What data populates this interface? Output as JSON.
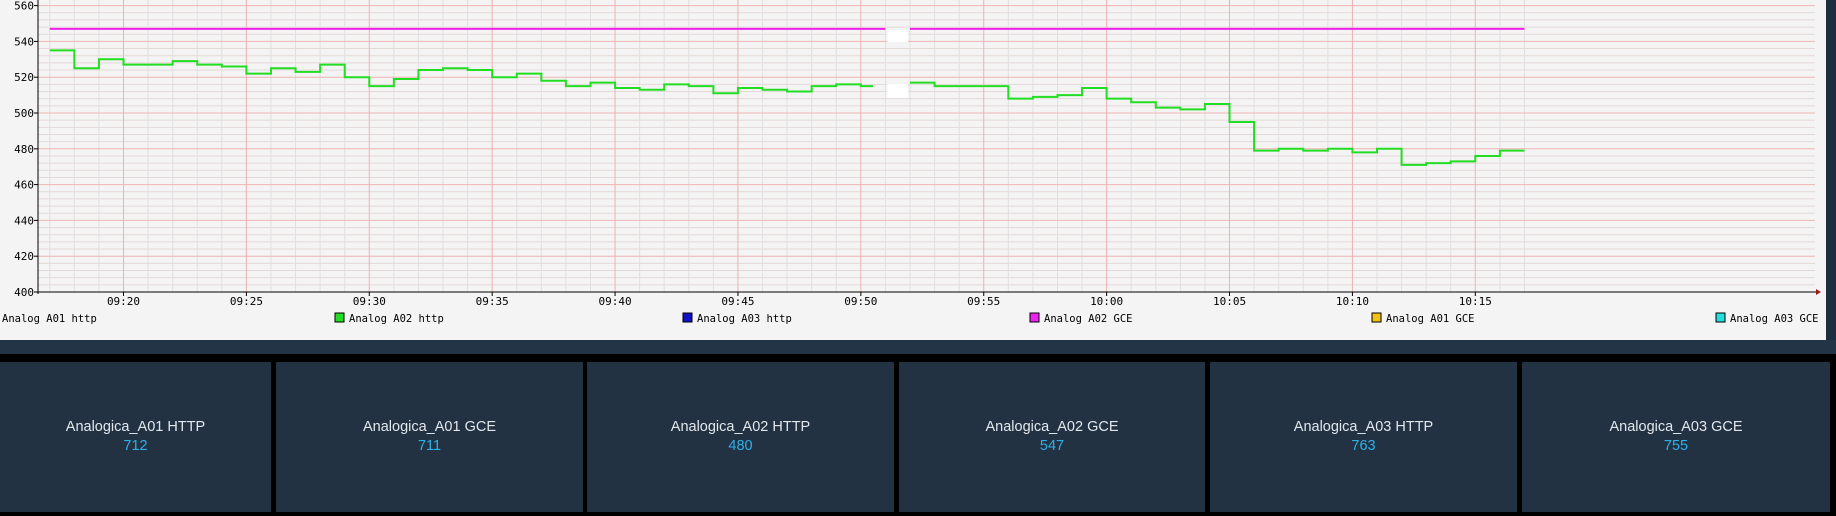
{
  "chart_data": {
    "type": "line",
    "title": "",
    "xlabel": "",
    "ylabel": "",
    "ylim": [
      400,
      570
    ],
    "yticks": [
      "400",
      "420",
      "440",
      "460",
      "480",
      "500",
      "520",
      "540",
      "560"
    ],
    "xlim": [
      "09:17:00",
      "09:17:00"
    ],
    "xtick_labels": [
      "09:20",
      "09:25",
      "09:30",
      "09:35",
      "09:40",
      "09:45",
      "09:50",
      "09:55",
      "10:00",
      "10:05",
      "10:10",
      "10:15"
    ],
    "grid": true,
    "step": true,
    "legend_position": "bottom",
    "legend": [
      {
        "name": "Analog A01 http",
        "color": "",
        "swatch": false
      },
      {
        "name": "Analog A02 http",
        "color": "#22dd22",
        "swatch": true
      },
      {
        "name": "Analog A03 http",
        "color": "#1010c8",
        "swatch": true
      },
      {
        "name": "Analog A02 GCE",
        "color": "#ee22ee",
        "swatch": true
      },
      {
        "name": "Analog A01 GCE",
        "color": "#f4c010",
        "swatch": true
      },
      {
        "name": "Analog A03 GCE",
        "color": "#22dede",
        "swatch": true
      }
    ],
    "series": [
      {
        "name": "Analog A02 http",
        "color": "#22dd22",
        "points": [
          [
            "09:17:00",
            535
          ],
          [
            "09:17:30",
            535
          ],
          [
            "09:18:00",
            525
          ],
          [
            "09:18:30",
            525
          ],
          [
            "09:19:00",
            530
          ],
          [
            "09:19:30",
            530
          ],
          [
            "09:20:00",
            527
          ],
          [
            "09:21:30",
            527
          ],
          [
            "09:22:00",
            529
          ],
          [
            "09:22:30",
            529
          ],
          [
            "09:23:00",
            527
          ],
          [
            "09:23:30",
            527
          ],
          [
            "09:24:00",
            526
          ],
          [
            "09:24:30",
            526
          ],
          [
            "09:25:00",
            522
          ],
          [
            "09:25:30",
            522
          ],
          [
            "09:26:00",
            525
          ],
          [
            "09:26:30",
            525
          ],
          [
            "09:27:00",
            523
          ],
          [
            "09:27:30",
            523
          ],
          [
            "09:28:00",
            527
          ],
          [
            "09:28:30",
            527
          ],
          [
            "09:29:00",
            520
          ],
          [
            "09:29:30",
            520
          ],
          [
            "09:30:00",
            515
          ],
          [
            "09:30:30",
            515
          ],
          [
            "09:31:00",
            519
          ],
          [
            "09:31:30",
            519
          ],
          [
            "09:32:00",
            524
          ],
          [
            "09:32:30",
            524
          ],
          [
            "09:33:00",
            525
          ],
          [
            "09:33:30",
            525
          ],
          [
            "09:34:00",
            524
          ],
          [
            "09:34:30",
            524
          ],
          [
            "09:35:00",
            520
          ],
          [
            "09:35:30",
            520
          ],
          [
            "09:36:00",
            522
          ],
          [
            "09:36:30",
            522
          ],
          [
            "09:37:00",
            518
          ],
          [
            "09:37:30",
            518
          ],
          [
            "09:38:00",
            515
          ],
          [
            "09:38:30",
            515
          ],
          [
            "09:39:00",
            517
          ],
          [
            "09:39:30",
            517
          ],
          [
            "09:40:00",
            514
          ],
          [
            "09:40:30",
            514
          ],
          [
            "09:41:00",
            513
          ],
          [
            "09:41:30",
            513
          ],
          [
            "09:42:00",
            516
          ],
          [
            "09:42:30",
            516
          ],
          [
            "09:43:00",
            515
          ],
          [
            "09:43:30",
            515
          ],
          [
            "09:44:00",
            511
          ],
          [
            "09:44:30",
            511
          ],
          [
            "09:45:00",
            514
          ],
          [
            "09:45:30",
            514
          ],
          [
            "09:46:00",
            513
          ],
          [
            "09:46:30",
            513
          ],
          [
            "09:47:00",
            512
          ],
          [
            "09:47:30",
            512
          ],
          [
            "09:48:00",
            515
          ],
          [
            "09:48:30",
            515
          ],
          [
            "09:49:00",
            516
          ],
          [
            "09:49:30",
            516
          ],
          [
            "09:50:00",
            515
          ],
          [
            "09:50:30",
            515
          ],
          [
            "09:52:00",
            517
          ],
          [
            "09:52:30",
            517
          ],
          [
            "09:53:00",
            515
          ],
          [
            "09:54:30",
            515
          ],
          [
            "09:55:00",
            515
          ],
          [
            "09:55:30",
            515
          ],
          [
            "09:56:00",
            508
          ],
          [
            "09:56:30",
            508
          ],
          [
            "09:57:00",
            509
          ],
          [
            "09:57:30",
            509
          ],
          [
            "09:58:00",
            510
          ],
          [
            "09:58:30",
            510
          ],
          [
            "09:59:00",
            514
          ],
          [
            "09:59:30",
            514
          ],
          [
            "10:00:00",
            508
          ],
          [
            "10:00:30",
            508
          ],
          [
            "10:01:00",
            506
          ],
          [
            "10:01:30",
            506
          ],
          [
            "10:02:00",
            503
          ],
          [
            "10:02:30",
            503
          ],
          [
            "10:03:00",
            502
          ],
          [
            "10:03:30",
            502
          ],
          [
            "10:04:00",
            505
          ],
          [
            "10:04:30",
            505
          ],
          [
            "10:05:00",
            495
          ],
          [
            "10:05:30",
            495
          ],
          [
            "10:06:00",
            479
          ],
          [
            "10:06:30",
            479
          ],
          [
            "10:07:00",
            480
          ],
          [
            "10:07:30",
            480
          ],
          [
            "10:08:00",
            479
          ],
          [
            "10:08:30",
            479
          ],
          [
            "10:09:00",
            480
          ],
          [
            "10:09:30",
            480
          ],
          [
            "10:10:00",
            478
          ],
          [
            "10:10:30",
            478
          ],
          [
            "10:11:00",
            480
          ],
          [
            "10:11:30",
            480
          ],
          [
            "10:12:00",
            471
          ],
          [
            "10:12:30",
            471
          ],
          [
            "10:13:00",
            472
          ],
          [
            "10:13:30",
            472
          ],
          [
            "10:14:00",
            473
          ],
          [
            "10:14:30",
            473
          ],
          [
            "10:15:00",
            476
          ],
          [
            "10:15:30",
            476
          ],
          [
            "10:16:00",
            479
          ],
          [
            "10:17:00",
            479
          ]
        ]
      },
      {
        "name": "Analog A02 GCE",
        "color": "#ee22ee",
        "points": [
          [
            "09:17:00",
            547
          ],
          [
            "09:51:00",
            547
          ],
          [
            "09:52:00",
            547
          ],
          [
            "10:17:00",
            547
          ]
        ]
      }
    ],
    "gap": {
      "from": "09:51:00",
      "to": "09:52:00"
    }
  },
  "tiles": [
    {
      "title": "Analogica_A01 HTTP",
      "value": "712"
    },
    {
      "title": "Analogica_A01 GCE",
      "value": "711"
    },
    {
      "title": "Analogica_A02 HTTP",
      "value": "480"
    },
    {
      "title": "Analogica_A02 GCE",
      "value": "547"
    },
    {
      "title": "Analogica_A03 HTTP",
      "value": "763"
    },
    {
      "title": "Analogica_A03 GCE",
      "value": "755"
    }
  ]
}
